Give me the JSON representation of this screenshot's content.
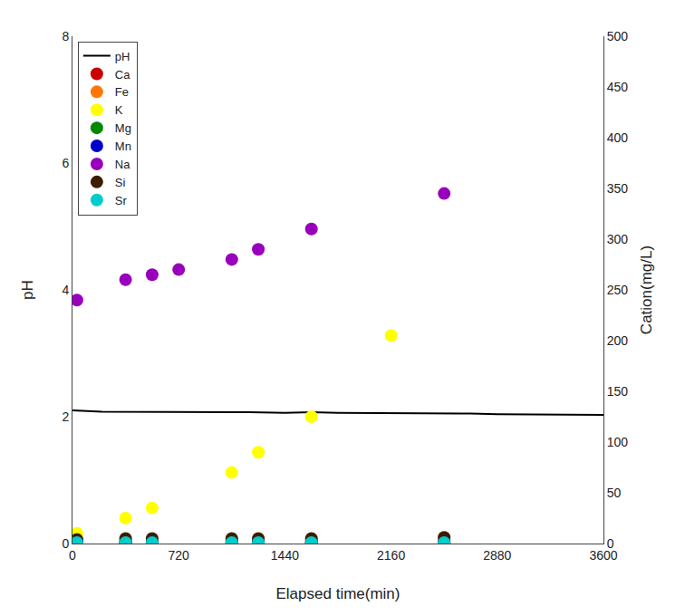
{
  "chart_data": {
    "type": "line",
    "xlabel": "Elapsed time(min)",
    "ylabel": "pH",
    "y2label": "Cation(mg/L)",
    "xlim": [
      0,
      3600
    ],
    "xticks": [
      0,
      720,
      1440,
      2160,
      2880,
      3600
    ],
    "ylim": [
      0,
      8
    ],
    "yticks": [
      0,
      2,
      4,
      6,
      8
    ],
    "y2lim": [
      0,
      500
    ],
    "y2ticks": [
      0,
      50,
      100,
      150,
      200,
      250,
      300,
      350,
      400,
      450,
      500
    ],
    "grid": false,
    "legend": "upper left",
    "series": [
      {
        "name": "pH",
        "type": "line",
        "line_style": "solid",
        "color": "#000000",
        "x": [
          0,
          30,
          60,
          100,
          200,
          360,
          500,
          720,
          900,
          1080,
          1200,
          1440,
          1620,
          1800,
          2000,
          2160,
          2400,
          2520,
          2700,
          2880,
          3100,
          3300,
          3600
        ],
        "values": [
          2.1,
          2.1,
          2.09,
          2.09,
          2.08,
          2.08,
          2.08,
          2.07,
          2.07,
          2.07,
          2.07,
          2.06,
          2.07,
          2.06,
          2.06,
          2.06,
          2.05,
          2.05,
          2.05,
          2.04,
          2.04,
          2.04,
          2.03
        ]
      },
      {
        "name": "Ca",
        "type": "scatter",
        "marker": "circle",
        "axis": "y2",
        "color": "#cc0000",
        "x": [
          30,
          360,
          540,
          1080,
          1260,
          1620,
          2520
        ],
        "values": [
          3,
          3,
          3,
          3,
          3,
          3,
          3
        ]
      },
      {
        "name": "Fe",
        "type": "scatter",
        "marker": "circle",
        "axis": "y2",
        "color": "#ff7700",
        "x": [
          30,
          360,
          540,
          1080,
          1260,
          1620,
          2520
        ],
        "values": [
          3,
          2,
          2,
          2,
          2,
          2,
          2
        ]
      },
      {
        "name": "K",
        "type": "scatter",
        "marker": "circle",
        "axis": "y2",
        "color": "#ffff00",
        "x": [
          30,
          360,
          540,
          1080,
          1260,
          1620,
          2160
        ],
        "values": [
          10,
          25,
          35,
          70,
          90,
          125,
          205
        ]
      },
      {
        "name": "Mg",
        "type": "scatter",
        "marker": "circle",
        "axis": "y2",
        "color": "#008800",
        "x": [
          30,
          360,
          540,
          1080,
          1260,
          1620,
          2520
        ],
        "values": [
          2,
          1,
          1,
          1,
          1,
          1,
          1
        ]
      },
      {
        "name": "Mn",
        "type": "scatter",
        "marker": "circle",
        "axis": "y2",
        "color": "#0000cc",
        "x": [
          30,
          360,
          540,
          1080,
          1260,
          1620,
          2520
        ],
        "values": [
          2,
          1,
          1,
          1,
          1,
          1,
          1
        ]
      },
      {
        "name": "Na",
        "type": "scatter",
        "marker": "circle",
        "axis": "y2",
        "color": "#9900bb",
        "x": [
          30,
          360,
          540,
          720,
          1080,
          1260,
          1620,
          2520
        ],
        "values": [
          240,
          260,
          265,
          270,
          280,
          290,
          310,
          345
        ]
      },
      {
        "name": "Si",
        "type": "scatter",
        "marker": "circle",
        "axis": "y2",
        "color": "#3d1c00",
        "x": [
          30,
          360,
          540,
          1080,
          1260,
          1620,
          2520
        ],
        "values": [
          4,
          5,
          5,
          5,
          5,
          5,
          6
        ]
      },
      {
        "name": "Sr",
        "type": "scatter",
        "marker": "circle",
        "axis": "y2",
        "color": "#00cccc",
        "x": [
          30,
          360,
          540,
          1080,
          1260,
          1620,
          2520
        ],
        "values": [
          1,
          1,
          1,
          1,
          1,
          1,
          1
        ]
      }
    ]
  }
}
